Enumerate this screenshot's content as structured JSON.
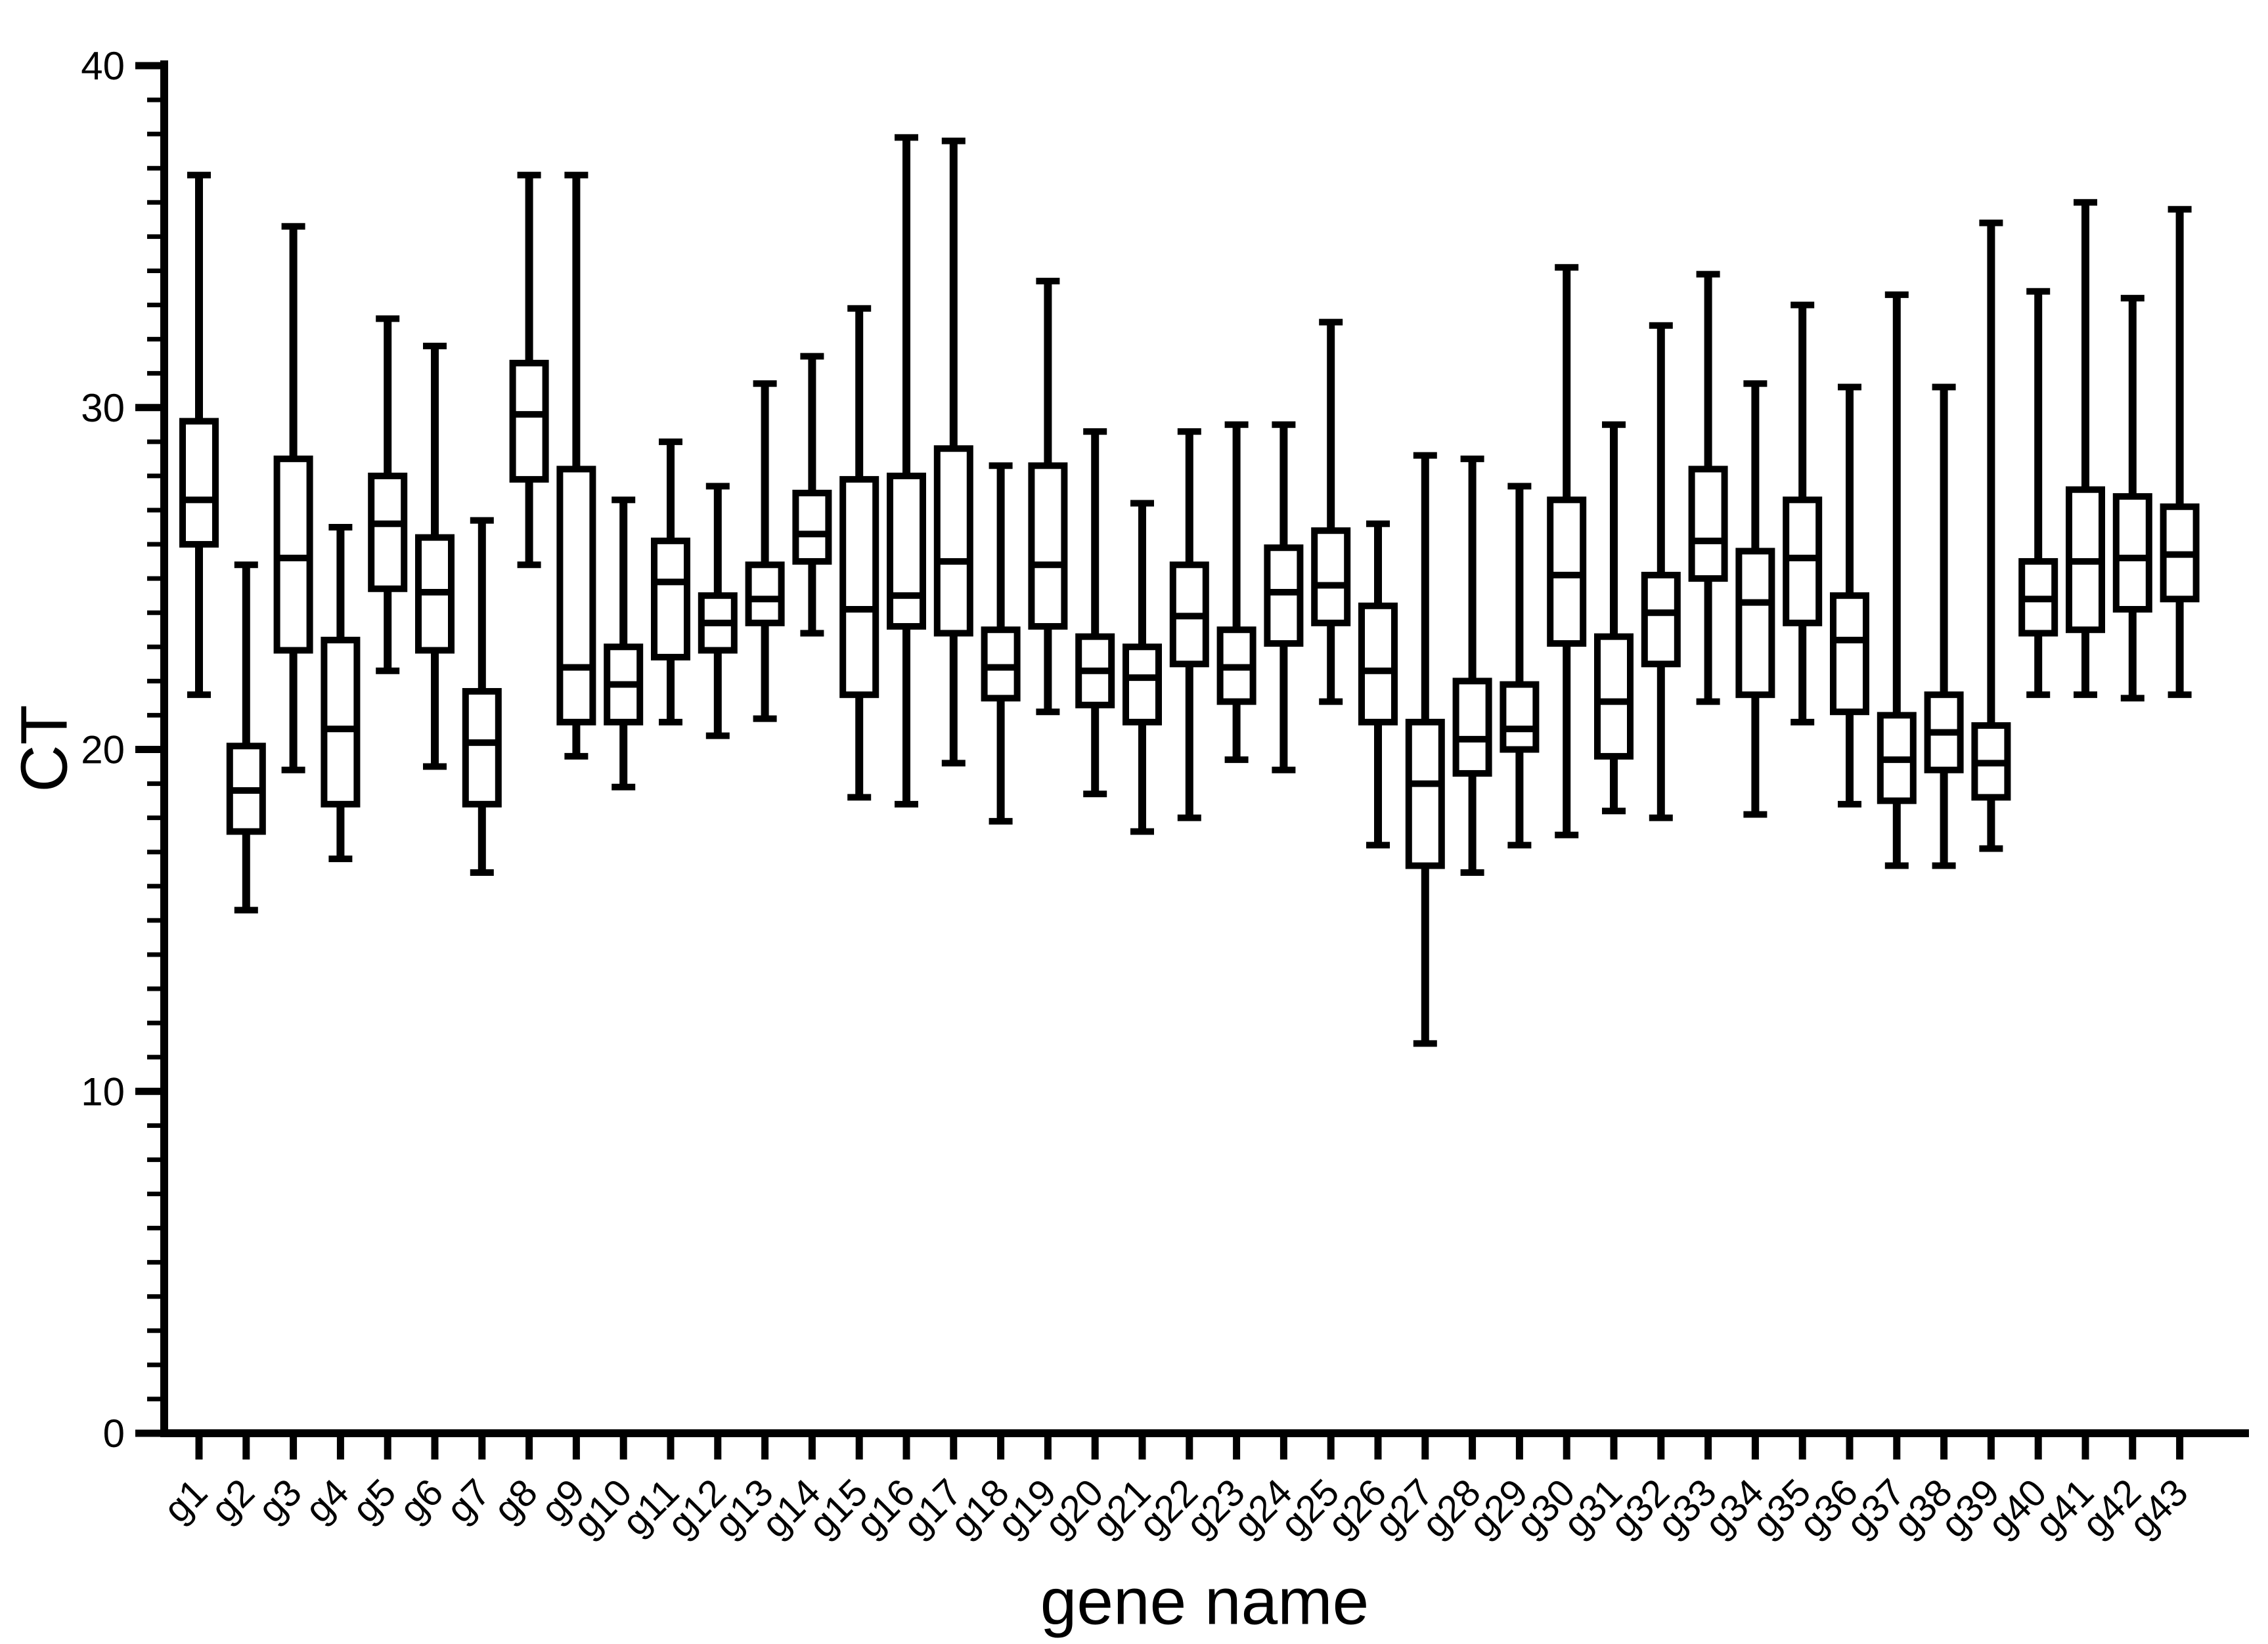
{
  "figure": {
    "background_color": "#ffffff",
    "ink_color": "#000000"
  },
  "chart_data": {
    "type": "box",
    "title": "",
    "xlabel": "gene name",
    "ylabel": "CT",
    "ylim": [
      0,
      40
    ],
    "y_major_ticks": [
      0,
      10,
      20,
      30,
      40
    ],
    "y_minor_tick_step": 1,
    "grid": "off",
    "legend": "none",
    "categories": [
      "g1",
      "g2",
      "g3",
      "g4",
      "g5",
      "g6",
      "g7",
      "g8",
      "g9",
      "g10",
      "g11",
      "g12",
      "g13",
      "g14",
      "g15",
      "g16",
      "g17",
      "g18",
      "g19",
      "g20",
      "g21",
      "g22",
      "g23",
      "g24",
      "g25",
      "g26",
      "g27",
      "g28",
      "g29",
      "g30",
      "g31",
      "g32",
      "g33",
      "g34",
      "g35",
      "g36",
      "g37",
      "g38",
      "g39",
      "g40",
      "g41",
      "g42",
      "g43"
    ],
    "boxes": [
      {
        "label": "g1",
        "whisker_low": 21.6,
        "q1": 26.0,
        "median": 27.3,
        "q3": 29.6,
        "whisker_high": 36.8
      },
      {
        "label": "g2",
        "whisker_low": 15.3,
        "q1": 17.6,
        "median": 18.8,
        "q3": 20.1,
        "whisker_high": 25.4
      },
      {
        "label": "g3",
        "whisker_low": 19.4,
        "q1": 22.9,
        "median": 25.6,
        "q3": 28.5,
        "whisker_high": 35.3
      },
      {
        "label": "g4",
        "whisker_low": 16.8,
        "q1": 18.4,
        "median": 20.6,
        "q3": 23.2,
        "whisker_high": 26.5
      },
      {
        "label": "g5",
        "whisker_low": 22.3,
        "q1": 24.7,
        "median": 26.6,
        "q3": 28.0,
        "whisker_high": 32.6
      },
      {
        "label": "g6",
        "whisker_low": 19.5,
        "q1": 22.9,
        "median": 24.6,
        "q3": 26.2,
        "whisker_high": 31.8
      },
      {
        "label": "g7",
        "whisker_low": 16.4,
        "q1": 18.4,
        "median": 20.2,
        "q3": 21.7,
        "whisker_high": 26.7
      },
      {
        "label": "g8",
        "whisker_low": 25.4,
        "q1": 27.9,
        "median": 29.8,
        "q3": 31.3,
        "whisker_high": 36.8
      },
      {
        "label": "g9",
        "whisker_low": 19.8,
        "q1": 20.8,
        "median": 22.4,
        "q3": 28.2,
        "whisker_high": 36.8
      },
      {
        "label": "g10",
        "whisker_low": 18.9,
        "q1": 20.8,
        "median": 21.9,
        "q3": 23.0,
        "whisker_high": 27.3
      },
      {
        "label": "g11",
        "whisker_low": 20.8,
        "q1": 22.7,
        "median": 24.9,
        "q3": 26.1,
        "whisker_high": 29.0
      },
      {
        "label": "g12",
        "whisker_low": 20.4,
        "q1": 22.9,
        "median": 23.7,
        "q3": 24.5,
        "whisker_high": 27.7
      },
      {
        "label": "g13",
        "whisker_low": 20.9,
        "q1": 23.7,
        "median": 24.4,
        "q3": 25.4,
        "whisker_high": 30.7
      },
      {
        "label": "g14",
        "whisker_low": 23.4,
        "q1": 25.5,
        "median": 26.3,
        "q3": 27.5,
        "whisker_high": 31.5
      },
      {
        "label": "g15",
        "whisker_low": 18.6,
        "q1": 21.6,
        "median": 24.1,
        "q3": 27.9,
        "whisker_high": 32.9
      },
      {
        "label": "g16",
        "whisker_low": 18.4,
        "q1": 23.6,
        "median": 24.5,
        "q3": 28.0,
        "whisker_high": 37.9
      },
      {
        "label": "g17",
        "whisker_low": 19.6,
        "q1": 23.4,
        "median": 25.5,
        "q3": 28.8,
        "whisker_high": 37.8
      },
      {
        "label": "g18",
        "whisker_low": 17.9,
        "q1": 21.5,
        "median": 22.4,
        "q3": 23.5,
        "whisker_high": 28.3
      },
      {
        "label": "g19",
        "whisker_low": 21.1,
        "q1": 23.6,
        "median": 25.4,
        "q3": 28.3,
        "whisker_high": 33.7
      },
      {
        "label": "g20",
        "whisker_low": 18.7,
        "q1": 21.3,
        "median": 22.3,
        "q3": 23.3,
        "whisker_high": 29.3
      },
      {
        "label": "g21",
        "whisker_low": 17.6,
        "q1": 20.8,
        "median": 22.1,
        "q3": 23.0,
        "whisker_high": 27.2
      },
      {
        "label": "g22",
        "whisker_low": 18.0,
        "q1": 22.5,
        "median": 23.9,
        "q3": 25.4,
        "whisker_high": 29.3
      },
      {
        "label": "g23",
        "whisker_low": 19.7,
        "q1": 21.4,
        "median": 22.4,
        "q3": 23.5,
        "whisker_high": 29.5
      },
      {
        "label": "g24",
        "whisker_low": 19.4,
        "q1": 23.1,
        "median": 24.6,
        "q3": 25.9,
        "whisker_high": 29.5
      },
      {
        "label": "g25",
        "whisker_low": 21.4,
        "q1": 23.7,
        "median": 24.8,
        "q3": 26.4,
        "whisker_high": 32.5
      },
      {
        "label": "g26",
        "whisker_low": 17.2,
        "q1": 20.8,
        "median": 22.3,
        "q3": 24.2,
        "whisker_high": 26.6
      },
      {
        "label": "g27",
        "whisker_low": 11.4,
        "q1": 16.6,
        "median": 19.0,
        "q3": 20.8,
        "whisker_high": 28.6
      },
      {
        "label": "g28",
        "whisker_low": 16.4,
        "q1": 19.3,
        "median": 20.3,
        "q3": 22.0,
        "whisker_high": 28.5
      },
      {
        "label": "g29",
        "whisker_low": 17.2,
        "q1": 20.0,
        "median": 20.6,
        "q3": 21.9,
        "whisker_high": 27.7
      },
      {
        "label": "g30",
        "whisker_low": 17.5,
        "q1": 23.1,
        "median": 25.1,
        "q3": 27.3,
        "whisker_high": 34.1
      },
      {
        "label": "g31",
        "whisker_low": 18.2,
        "q1": 19.8,
        "median": 21.4,
        "q3": 23.3,
        "whisker_high": 29.5
      },
      {
        "label": "g32",
        "whisker_low": 18.0,
        "q1": 22.5,
        "median": 24.0,
        "q3": 25.1,
        "whisker_high": 32.4
      },
      {
        "label": "g33",
        "whisker_low": 21.4,
        "q1": 25.0,
        "median": 26.1,
        "q3": 28.2,
        "whisker_high": 33.9
      },
      {
        "label": "g34",
        "whisker_low": 18.1,
        "q1": 21.6,
        "median": 24.3,
        "q3": 25.8,
        "whisker_high": 30.7
      },
      {
        "label": "g35",
        "whisker_low": 20.8,
        "q1": 23.7,
        "median": 25.6,
        "q3": 27.3,
        "whisker_high": 33.0
      },
      {
        "label": "g36",
        "whisker_low": 18.4,
        "q1": 21.1,
        "median": 23.2,
        "q3": 24.5,
        "whisker_high": 30.6
      },
      {
        "label": "g37",
        "whisker_low": 16.6,
        "q1": 18.5,
        "median": 19.7,
        "q3": 21.0,
        "whisker_high": 33.3
      },
      {
        "label": "g38",
        "whisker_low": 16.6,
        "q1": 19.4,
        "median": 20.5,
        "q3": 21.6,
        "whisker_high": 30.6
      },
      {
        "label": "g39",
        "whisker_low": 17.1,
        "q1": 18.6,
        "median": 19.6,
        "q3": 20.7,
        "whisker_high": 35.4
      },
      {
        "label": "g40",
        "whisker_low": 21.6,
        "q1": 23.4,
        "median": 24.4,
        "q3": 25.5,
        "whisker_high": 33.4
      },
      {
        "label": "g41",
        "whisker_low": 21.6,
        "q1": 23.5,
        "median": 25.5,
        "q3": 27.6,
        "whisker_high": 36.0
      },
      {
        "label": "g42",
        "whisker_low": 21.5,
        "q1": 24.1,
        "median": 25.6,
        "q3": 27.4,
        "whisker_high": 33.2
      },
      {
        "label": "g43",
        "whisker_low": 21.6,
        "q1": 24.4,
        "median": 25.7,
        "q3": 27.1,
        "whisker_high": 35.8
      }
    ]
  }
}
